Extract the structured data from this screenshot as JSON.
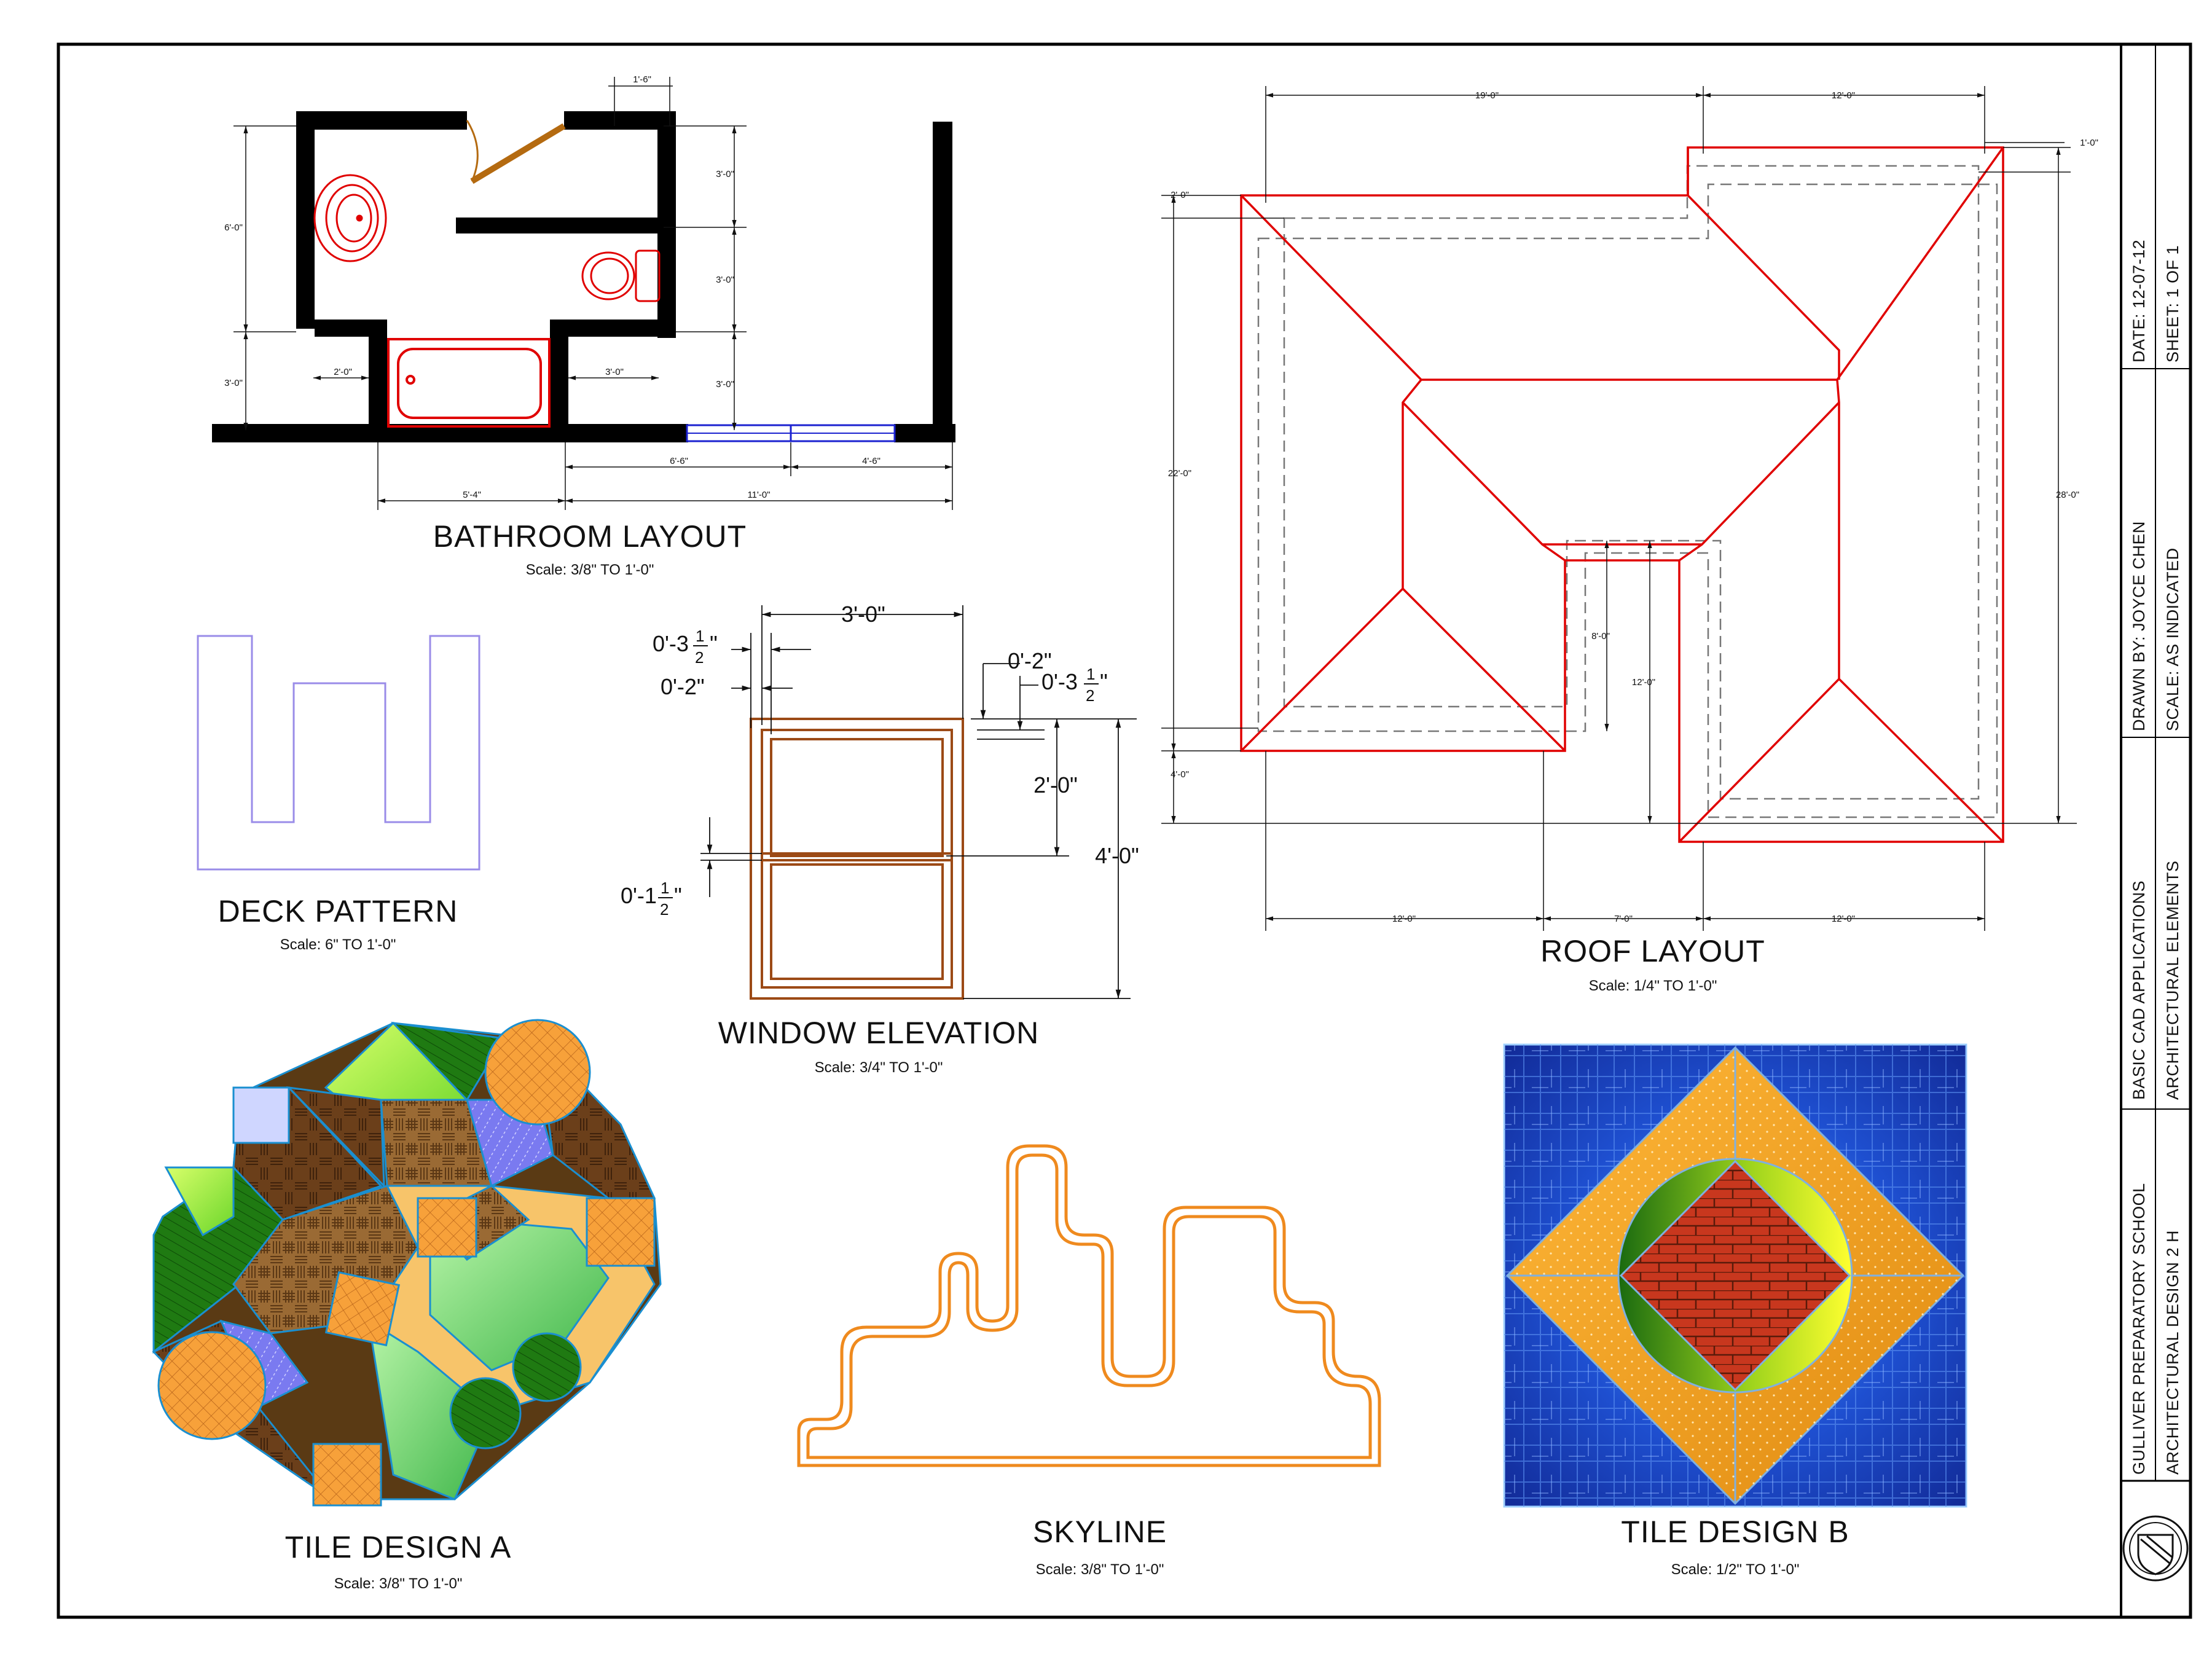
{
  "colors": {
    "border": "#000000",
    "roof_lines": "#e00000",
    "deck_pattern": "#9a8ce8",
    "window": "#9c4a16",
    "skyline": "#ef8a1e",
    "tile_b_background": "#1a3fb8",
    "tile_b_diamond": "#f7a21a",
    "tile_b_brick": "#c8371e"
  },
  "drawings": {
    "bathroom": {
      "title": "BATHROOM LAYOUT",
      "scale": "Scale: 3/8\" TO 1'-0\"",
      "dims": {
        "door_gap": "1'-6\"",
        "left_height": "6'-0\"",
        "left_lower": "3'-0\"",
        "right_top": "3'-0\"",
        "right_mid": "3'-0\"",
        "right_low": "3'-0\"",
        "tub_left": "2'-0\"",
        "tub_right": "3'-0\"",
        "window_left": "6'-6\"",
        "window_right": "4'-6\"",
        "overall_left": "5'-4\"",
        "overall_right": "11'-0\""
      }
    },
    "deck": {
      "title": "DECK PATTERN",
      "scale": "Scale: 6\" TO 1'-0\""
    },
    "window": {
      "title": "WINDOW ELEVATION",
      "scale": "Scale: 3/4\" TO 1'-0\"",
      "dims": {
        "width": "3'-0\"",
        "frame_a_whole": "0'-3",
        "frame_a_frac": "1/2",
        "frame_b": "0'-2\"",
        "right_small": "0'-2\"",
        "right_frac_whole": "0'-3",
        "right_frac": "1/2",
        "upper_sash": "2'-0\"",
        "overall_height": "4'-0\"",
        "meeting_rail_whole": "0'-1",
        "meeting_rail_frac": "1/2"
      }
    },
    "roof": {
      "title": "ROOF LAYOUT",
      "scale": "Scale: 1/4\" TO 1'-0\"",
      "dims": {
        "top_left": "19'-0\"",
        "top_right": "12'-0\"",
        "overhang_right": "1'-0\"",
        "overhang_left": "2'-0\"",
        "left_height": "22'-0\"",
        "right_height": "28'-0\"",
        "inner_a": "8'-0\"",
        "inner_b": "12'-0\"",
        "left_bottom": "4'-0\"",
        "bottom_left": "12'-0\"",
        "bottom_mid": "7'-0\"",
        "bottom_right": "12'-0\""
      }
    },
    "tile_a": {
      "title": "TILE DESIGN A",
      "scale": "Scale: 3/8\" TO 1'-0\""
    },
    "skyline": {
      "title": "SKYLINE",
      "scale": "Scale: 3/8\" TO 1'-0\""
    },
    "tile_b": {
      "title": "TILE DESIGN B",
      "scale": "Scale: 1/2\" TO 1'-0\""
    }
  },
  "title_block": {
    "date": "DATE: 12-07-12",
    "sheet": "SHEET: 1 OF 1",
    "drawn_by": "DRAWN BY: JOYCE CHEN",
    "scale": "SCALE: AS INDICATED",
    "course": "BASIC CAD APPLICATIONS",
    "subject": "ARCHITECTURAL ELEMENTS",
    "school": "GULLIVER PREPARATORY SCHOOL",
    "class": "ARCHITECTURAL DESIGN 2 H",
    "logo": "school-seal-icon"
  }
}
